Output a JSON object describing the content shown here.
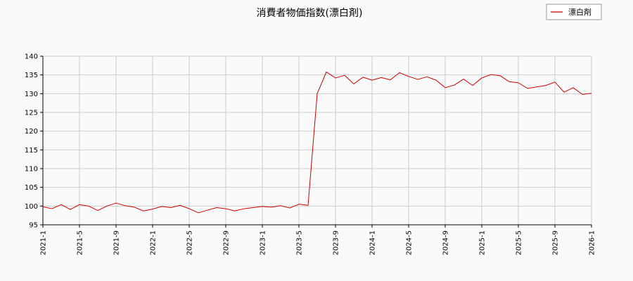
{
  "chart_data": {
    "type": "line",
    "title": "消費者物価指数(漂白剤)",
    "xlabel": "",
    "ylabel": "",
    "ylim": [
      95,
      140
    ],
    "yticks": [
      95,
      100,
      105,
      110,
      115,
      120,
      125,
      130,
      135,
      140
    ],
    "xticks": [
      "2021-1",
      "2021-5",
      "2021-9",
      "2022-1",
      "2022-5",
      "2022-9",
      "2023-1",
      "2023-5",
      "2023-9",
      "2024-1",
      "2024-5",
      "2024-9",
      "2025-1",
      "2025-5",
      "2025-9",
      "2026-1"
    ],
    "grid": true,
    "legend_position": "top-right",
    "colors": {
      "series": "#cc0000",
      "grid": "#cccccc",
      "axis": "#000000"
    },
    "x": [
      "2021-1",
      "2021-2",
      "2021-3",
      "2021-4",
      "2021-5",
      "2021-6",
      "2021-7",
      "2021-8",
      "2021-9",
      "2021-10",
      "2021-11",
      "2021-12",
      "2022-1",
      "2022-2",
      "2022-3",
      "2022-4",
      "2022-5",
      "2022-6",
      "2022-7",
      "2022-8",
      "2022-9",
      "2022-10",
      "2022-11",
      "2022-12",
      "2023-1",
      "2023-2",
      "2023-3",
      "2023-4",
      "2023-5",
      "2023-6",
      "2023-7",
      "2023-8",
      "2023-9",
      "2023-10",
      "2023-11",
      "2023-12",
      "2024-1",
      "2024-2",
      "2024-3",
      "2024-4",
      "2024-5",
      "2024-6",
      "2024-7",
      "2024-8",
      "2024-9",
      "2024-10",
      "2024-11",
      "2024-12",
      "2025-1",
      "2025-2",
      "2025-3",
      "2025-4",
      "2025-5",
      "2025-6",
      "2025-7",
      "2025-8",
      "2025-9",
      "2025-10",
      "2025-11",
      "2025-12",
      "2026-1"
    ],
    "series": [
      {
        "name": "漂白剤",
        "values": [
          99.8,
          99.3,
          100.4,
          99.1,
          100.4,
          100.0,
          98.8,
          100.0,
          100.8,
          100.1,
          99.7,
          98.7,
          99.2,
          99.9,
          99.6,
          100.2,
          99.3,
          98.2,
          98.9,
          99.6,
          99.3,
          98.7,
          99.3,
          99.6,
          99.9,
          99.7,
          100.1,
          99.5,
          100.5,
          100.2,
          130.0,
          135.8,
          134.2,
          134.9,
          132.6,
          134.4,
          133.6,
          134.3,
          133.7,
          135.6,
          134.6,
          133.8,
          134.5,
          133.6,
          131.6,
          132.3,
          133.9,
          132.2,
          134.2,
          135.1,
          134.8,
          133.2,
          132.9,
          131.4,
          131.8,
          132.2,
          133.1,
          130.4,
          131.6,
          129.8,
          130.1
        ]
      }
    ]
  }
}
